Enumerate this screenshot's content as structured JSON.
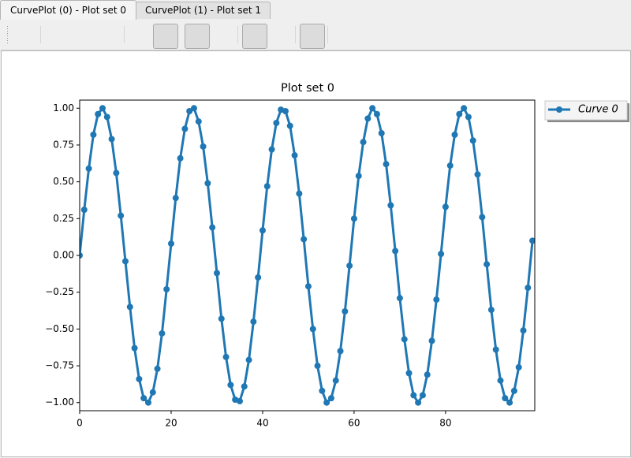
{
  "tabs": [
    "CurvePlot (0) - Plot set 0",
    "CurvePlot (1) - Plot set 1"
  ],
  "chart_data": {
    "type": "line",
    "title": "Plot set 0",
    "x": [
      0,
      1,
      2,
      3,
      4,
      5,
      6,
      7,
      8,
      9,
      10,
      11,
      12,
      13,
      14,
      15,
      16,
      17,
      18,
      19,
      20,
      21,
      22,
      23,
      24,
      25,
      26,
      27,
      28,
      29,
      30,
      31,
      32,
      33,
      34,
      35,
      36,
      37,
      38,
      39,
      40,
      41,
      42,
      43,
      44,
      45,
      46,
      47,
      48,
      49,
      50,
      51,
      52,
      53,
      54,
      55,
      56,
      57,
      58,
      59,
      60,
      61,
      62,
      63,
      64,
      65,
      66,
      67,
      68,
      69,
      70,
      71,
      72,
      73,
      74,
      75,
      76,
      77,
      78,
      79,
      80,
      81,
      82,
      83,
      84,
      85,
      86,
      87,
      88,
      89,
      90,
      91,
      92,
      93,
      94,
      95,
      96,
      97,
      98,
      99
    ],
    "series": [
      {
        "name": "Curve 0",
        "color": "#1f77b4",
        "values": [
          0.0,
          0.31,
          0.59,
          0.82,
          0.96,
          1.0,
          0.94,
          0.79,
          0.56,
          0.27,
          -0.04,
          -0.35,
          -0.63,
          -0.84,
          -0.97,
          -1.0,
          -0.93,
          -0.77,
          -0.53,
          -0.23,
          0.08,
          0.39,
          0.66,
          0.86,
          0.98,
          1.0,
          0.91,
          0.74,
          0.49,
          0.19,
          -0.12,
          -0.43,
          -0.69,
          -0.88,
          -0.98,
          -0.99,
          -0.89,
          -0.71,
          -0.45,
          -0.15,
          0.17,
          0.47,
          0.72,
          0.9,
          0.99,
          0.98,
          0.88,
          0.68,
          0.42,
          0.11,
          -0.21,
          -0.5,
          -0.75,
          -0.92,
          -1.0,
          -0.97,
          -0.85,
          -0.65,
          -0.38,
          -0.07,
          0.25,
          0.54,
          0.77,
          0.93,
          1.0,
          0.96,
          0.83,
          0.62,
          0.34,
          0.03,
          -0.29,
          -0.57,
          -0.8,
          -0.95,
          -1.0,
          -0.95,
          -0.81,
          -0.58,
          -0.3,
          0.01,
          0.33,
          0.61,
          0.82,
          0.96,
          1.0,
          0.94,
          0.78,
          0.55,
          0.26,
          -0.06,
          -0.37,
          -0.64,
          -0.85,
          -0.97,
          -1.0,
          -0.92,
          -0.76,
          -0.51,
          -0.22,
          0.1
        ]
      }
    ],
    "xlim": [
      0,
      99.5
    ],
    "ylim": [
      -1.055,
      1.055
    ],
    "xticks": [
      0,
      20,
      40,
      60,
      80
    ],
    "yticks": [
      {
        "value": -1,
        "label": "−1.00"
      },
      {
        "value": -0.75,
        "label": "−0.75"
      },
      {
        "value": -0.5,
        "label": "−0.50"
      },
      {
        "value": -0.25,
        "label": "−0.25"
      },
      {
        "value": 0,
        "label": "0.00"
      },
      {
        "value": 0.25,
        "label": "0.25"
      },
      {
        "value": 0.5,
        "label": "0.50"
      },
      {
        "value": 0.75,
        "label": "0.75"
      },
      {
        "value": 1,
        "label": "1.00"
      }
    ],
    "legend": "outside-upper-right"
  }
}
